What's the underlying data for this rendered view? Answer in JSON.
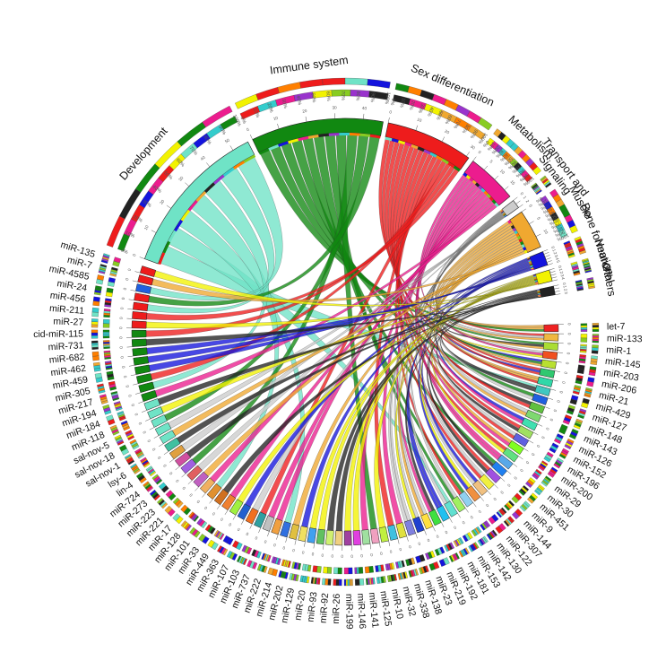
{
  "groups": [
    {
      "name": "Development",
      "label": "Development",
      "count": 56,
      "color": "#6fe3c6"
    },
    {
      "name": "Immune system",
      "label": "Immune system",
      "count": 47,
      "color": "#118811"
    },
    {
      "name": "Sex differentiation",
      "label": "Sex differentiation",
      "count": 31,
      "color": "#ee1c1c"
    },
    {
      "name": "Metabolism",
      "label": "Metabolism",
      "count": 18,
      "color": "#ec1c8e"
    },
    {
      "name": "Transport and Signaling",
      "label": "Transport and\nSignaling",
      "count": 2,
      "color": "#cccccc"
    },
    {
      "name": "Muscle",
      "label": "Muscle",
      "count": 14,
      "color": "#f0a830"
    },
    {
      "name": "Bone formation",
      "label": "Bone formation",
      "count": 5,
      "color": "#1414dd"
    },
    {
      "name": "Neuronal",
      "label": "Neuronal",
      "count": 4,
      "color": "#f2f200"
    },
    {
      "name": "Others",
      "label": "Others",
      "count": 3,
      "color": "#222222"
    }
  ],
  "mirnas": [
    {
      "name": "let-7",
      "color": "#ee2222"
    },
    {
      "name": "miR-133",
      "color": "#f0b840"
    },
    {
      "name": "miR-1",
      "color": "#aadd33"
    },
    {
      "name": "miR-145",
      "color": "#f05020"
    },
    {
      "name": "miR-203",
      "color": "#b8e030"
    },
    {
      "name": "miR-206",
      "color": "#30c870"
    },
    {
      "name": "miR-21",
      "color": "#30d8a8"
    },
    {
      "name": "miR-429",
      "color": "#40c8c0"
    },
    {
      "name": "miR-127",
      "color": "#2060e0"
    },
    {
      "name": "miR-148",
      "color": "#60c040"
    },
    {
      "name": "miR-143",
      "color": "#7ed870"
    },
    {
      "name": "miR-126",
      "color": "#40e0b0"
    },
    {
      "name": "miR-152",
      "color": "#a0e060"
    },
    {
      "name": "miR-196",
      "color": "#6060e0"
    },
    {
      "name": "miR-200",
      "color": "#80ff20"
    },
    {
      "name": "miR-29",
      "color": "#60e080"
    },
    {
      "name": "miR-30",
      "color": "#58a8e8"
    },
    {
      "name": "miR-451",
      "color": "#2080f0"
    },
    {
      "name": "miR-9",
      "color": "#a050e0"
    },
    {
      "name": "miR-144",
      "color": "#f0f040"
    },
    {
      "name": "miR-307",
      "color": "#f0c080"
    },
    {
      "name": "miR-122",
      "color": "#f09040"
    },
    {
      "name": "miR-130",
      "color": "#90d0f0"
    },
    {
      "name": "miR-142",
      "color": "#a0f060"
    },
    {
      "name": "miR-153",
      "color": "#60e0d0"
    },
    {
      "name": "miR-181",
      "color": "#20c0f0"
    },
    {
      "name": "miR-192",
      "color": "#40e040"
    },
    {
      "name": "miR-219",
      "color": "#ffe040"
    },
    {
      "name": "miR-23",
      "color": "#2040d0"
    },
    {
      "name": "miR-138",
      "color": "#8080e0"
    },
    {
      "name": "miR-338",
      "color": "#e0e040"
    },
    {
      "name": "miR-32",
      "color": "#40c0e0"
    },
    {
      "name": "miR-10",
      "color": "#c0f040"
    },
    {
      "name": "miR-125",
      "color": "#f0a0c0"
    },
    {
      "name": "miR-141",
      "color": "#a0e0a0"
    },
    {
      "name": "miR-146",
      "color": "#e040e0"
    },
    {
      "name": "miR-199",
      "color": "#a040a0"
    },
    {
      "name": "miR-26",
      "color": "#f0d080"
    },
    {
      "name": "miR-92",
      "color": "#d0f070"
    },
    {
      "name": "miR-93",
      "color": "#60c060"
    },
    {
      "name": "miR-20",
      "color": "#40a0f0"
    },
    {
      "name": "miR-129",
      "color": "#f0e060"
    },
    {
      "name": "miR-202",
      "color": "#e0c040"
    },
    {
      "name": "miR-214",
      "color": "#3070e0"
    },
    {
      "name": "miR-222",
      "color": "#f0a040"
    },
    {
      "name": "miR-737",
      "color": "#c0c0c0"
    },
    {
      "name": "miR-103",
      "color": "#30a0a0"
    },
    {
      "name": "miR-107",
      "color": "#f07020"
    },
    {
      "name": "miR-363",
      "color": "#2060d0"
    },
    {
      "name": "miR-449",
      "color": "#a0f040"
    },
    {
      "name": "miR-33",
      "color": "#f08030"
    },
    {
      "name": "miR-101",
      "color": "#d07020"
    },
    {
      "name": "miR-128",
      "color": "#e09030"
    },
    {
      "name": "miR-17",
      "color": "#f0b060"
    },
    {
      "name": "miR-221",
      "color": "#c060c0"
    },
    {
      "name": "miR-223",
      "color": "#e06060"
    },
    {
      "name": "miR-273",
      "color": "#a060e0"
    },
    {
      "name": "miR-724",
      "color": "#d050a0"
    },
    {
      "name": "lin-4",
      "color": "#e0a040"
    },
    {
      "name": "lsy-6",
      "color": "#40c0a0"
    },
    {
      "name": "sal-nov-1",
      "color": "#6fe3c6"
    },
    {
      "name": "sal-nov-18",
      "color": "#6fe3c6"
    },
    {
      "name": "sal-nov-5",
      "color": "#6fe3c6"
    },
    {
      "name": "miR-118",
      "color": "#6fe3c6"
    },
    {
      "name": "miR-184",
      "color": "#6fe3c6"
    },
    {
      "name": "miR-194",
      "color": "#118811"
    },
    {
      "name": "miR-217",
      "color": "#118811"
    },
    {
      "name": "miR-305",
      "color": "#118811"
    },
    {
      "name": "miR-459",
      "color": "#118811"
    },
    {
      "name": "miR-462",
      "color": "#118811"
    },
    {
      "name": "miR-682",
      "color": "#118811"
    },
    {
      "name": "miR-731",
      "color": "#118811"
    },
    {
      "name": "cid-miR-115",
      "color": "#118811"
    },
    {
      "name": "miR-27",
      "color": "#ee1c1c"
    },
    {
      "name": "miR-211",
      "color": "#ee1c1c"
    },
    {
      "name": "miR-456",
      "color": "#ee1c1c"
    },
    {
      "name": "miR-24",
      "color": "#ee1c1c"
    },
    {
      "name": "miR-4585",
      "color": "#2060e0"
    },
    {
      "name": "miR-7",
      "color": "#ee1c1c"
    },
    {
      "name": "miR-135",
      "color": "#ee1c1c"
    }
  ],
  "percent_labels": [
    "0%",
    "10%",
    "20%",
    "30%",
    "40%",
    "50%",
    "60%",
    "70%",
    "80%",
    "90%",
    "100%"
  ]
}
